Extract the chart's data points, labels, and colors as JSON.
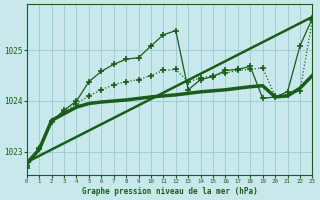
{
  "title": "Graphe pression niveau de la mer (hPa)",
  "bg_color": "#c8e8ec",
  "grid_color": "#99cccc",
  "line_color": "#1a5c1a",
  "xlim": [
    0,
    23
  ],
  "ylim": [
    1022.55,
    1025.9
  ],
  "yticks": [
    1023,
    1024,
    1025
  ],
  "xticks": [
    0,
    1,
    2,
    3,
    4,
    5,
    6,
    7,
    8,
    9,
    10,
    11,
    12,
    13,
    14,
    15,
    16,
    17,
    18,
    19,
    20,
    21,
    22,
    23
  ],
  "series": [
    {
      "x": [
        0,
        23
      ],
      "y": [
        1022.8,
        1025.65
      ],
      "marker": null,
      "linewidth": 1.8,
      "linestyle": "-"
    },
    {
      "x": [
        0,
        1,
        2,
        3,
        4,
        5,
        6,
        7,
        8,
        9,
        10,
        11,
        12,
        13,
        14,
        15,
        16,
        17,
        18,
        19,
        20,
        21,
        22,
        23
      ],
      "y": [
        1022.78,
        1023.05,
        1023.62,
        1023.75,
        1023.88,
        1023.95,
        1023.98,
        1024.0,
        1024.02,
        1024.05,
        1024.08,
        1024.1,
        1024.12,
        1024.15,
        1024.18,
        1024.2,
        1024.22,
        1024.25,
        1024.28,
        1024.3,
        1024.08,
        1024.1,
        1024.25,
        1024.5
      ],
      "marker": null,
      "linewidth": 2.5,
      "linestyle": "-"
    },
    {
      "x": [
        0,
        1,
        2,
        3,
        4,
        5,
        6,
        7,
        8,
        9,
        10,
        11,
        12,
        13,
        14,
        15,
        16,
        17,
        18,
        19,
        20,
        21,
        22,
        23
      ],
      "y": [
        1022.72,
        1023.08,
        1023.6,
        1023.82,
        1024.0,
        1024.38,
        1024.58,
        1024.72,
        1024.82,
        1024.85,
        1025.08,
        1025.3,
        1025.38,
        1024.22,
        1024.42,
        1024.48,
        1024.6,
        1024.62,
        1024.68,
        1024.05,
        1024.08,
        1024.18,
        1025.08,
        1025.62
      ],
      "marker": "+",
      "markersize": 5,
      "markeredgewidth": 1.2,
      "linewidth": 0.9,
      "linestyle": "-"
    },
    {
      "x": [
        0,
        1,
        2,
        3,
        4,
        5,
        6,
        7,
        8,
        9,
        10,
        11,
        12,
        13,
        14,
        15,
        16,
        17,
        18,
        19,
        20,
        21,
        22,
        23
      ],
      "y": [
        1022.68,
        1023.05,
        1023.58,
        1023.78,
        1023.95,
        1024.1,
        1024.22,
        1024.32,
        1024.38,
        1024.42,
        1024.5,
        1024.6,
        1024.62,
        1024.38,
        1024.45,
        1024.5,
        1024.55,
        1024.6,
        1024.62,
        1024.65,
        1024.1,
        1024.12,
        1024.2,
        1025.58
      ],
      "marker": "+",
      "markersize": 5,
      "markeredgewidth": 1.2,
      "linewidth": 0.9,
      "linestyle": ":"
    }
  ]
}
